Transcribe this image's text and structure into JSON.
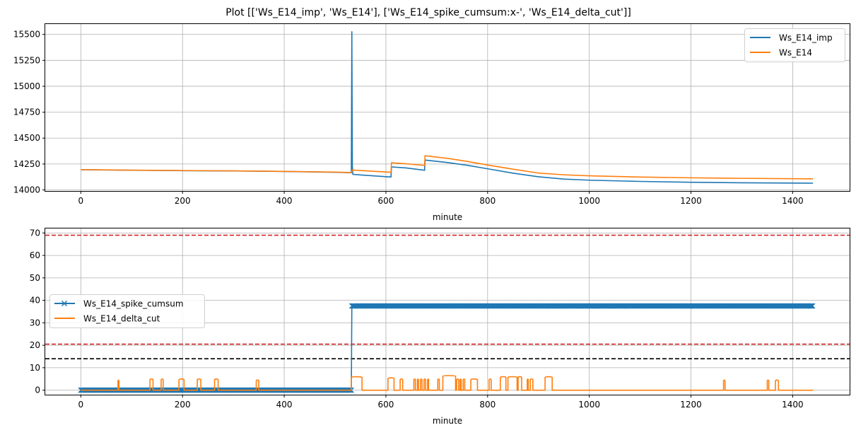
{
  "figure": {
    "title": "Plot [['Ws_E14_imp', 'Ws_E14'], ['Ws_E14_spike_cumsum:x-', 'Ws_E14_delta_cut']]"
  },
  "colors": {
    "blue": "#1f77b4",
    "orange": "#ff7f0e",
    "red_dashed": "#d62728",
    "black_dashed": "#000000",
    "grid": "#b0b0b0"
  },
  "chart_data": [
    {
      "type": "line",
      "xlabel": "minute",
      "ylabel": "",
      "xlim": [
        -70,
        1512
      ],
      "ylim": [
        13990,
        15600
      ],
      "xticks": [
        0,
        200,
        400,
        600,
        800,
        1000,
        1200,
        1400
      ],
      "yticks": [
        14000,
        14250,
        14500,
        14750,
        15000,
        15250,
        15500
      ],
      "grid": true,
      "legend_position": "top-right",
      "series": [
        {
          "name": "Ws_E14_imp",
          "color": "blue",
          "style": "solid",
          "points": [
            [
              0,
              14195
            ],
            [
              100,
              14190
            ],
            [
              200,
              14186
            ],
            [
              300,
              14183
            ],
            [
              400,
              14178
            ],
            [
              500,
              14170
            ],
            [
              532,
              14166
            ],
            [
              533,
              15530
            ],
            [
              534,
              14230
            ],
            [
              535,
              14150
            ],
            [
              600,
              14128
            ],
            [
              610,
              14125
            ],
            [
              611,
              14222
            ],
            [
              640,
              14212
            ],
            [
              676,
              14190
            ],
            [
              677,
              14288
            ],
            [
              720,
              14265
            ],
            [
              760,
              14238
            ],
            [
              800,
              14204
            ],
            [
              850,
              14162
            ],
            [
              900,
              14127
            ],
            [
              950,
              14105
            ],
            [
              1000,
              14094
            ],
            [
              1100,
              14082
            ],
            [
              1200,
              14074
            ],
            [
              1300,
              14069
            ],
            [
              1440,
              14065
            ]
          ]
        },
        {
          "name": "Ws_E14",
          "color": "orange",
          "style": "solid",
          "points": [
            [
              0,
              14196
            ],
            [
              100,
              14191
            ],
            [
              200,
              14187
            ],
            [
              300,
              14184
            ],
            [
              400,
              14179
            ],
            [
              500,
              14172
            ],
            [
              532,
              14168
            ],
            [
              534,
              14192
            ],
            [
              610,
              14170
            ],
            [
              611,
              14262
            ],
            [
              640,
              14252
            ],
            [
              676,
              14236
            ],
            [
              677,
              14330
            ],
            [
              720,
              14305
            ],
            [
              760,
              14275
            ],
            [
              800,
              14240
            ],
            [
              850,
              14200
            ],
            [
              900,
              14163
            ],
            [
              950,
              14146
            ],
            [
              1000,
              14136
            ],
            [
              1100,
              14124
            ],
            [
              1200,
              14117
            ],
            [
              1300,
              14112
            ],
            [
              1440,
              14107
            ]
          ]
        }
      ]
    },
    {
      "type": "line",
      "xlabel": "minute",
      "ylabel": "",
      "xlim": [
        -70,
        1512
      ],
      "ylim": [
        -2,
        72
      ],
      "xticks": [
        0,
        200,
        400,
        600,
        800,
        1000,
        1200,
        1400
      ],
      "yticks": [
        0,
        10,
        20,
        30,
        40,
        50,
        60,
        70
      ],
      "grid": true,
      "legend_position": "center-left",
      "reference_lines": [
        {
          "y": 69,
          "color": "red_dashed",
          "style": "dashed"
        },
        {
          "y": 20.5,
          "color": "red_dashed",
          "style": "dashed"
        },
        {
          "y": 14,
          "color": "black_dashed",
          "style": "dashed"
        }
      ],
      "series": [
        {
          "name": "Ws_E14_spike_cumsum",
          "color": "blue",
          "style": "solid-x-markers",
          "segments": [
            [
              0,
              532,
              0
            ],
            [
              533,
              1440,
              37.5
            ]
          ]
        },
        {
          "name": "Ws_E14_delta_cut",
          "color": "orange",
          "style": "solid",
          "pulses": [
            [
              73,
              75,
              4.5
            ],
            [
              136,
              142,
              5
            ],
            [
              158,
              162,
              5
            ],
            [
              193,
              203,
              5
            ],
            [
              229,
              236,
              5
            ],
            [
              263,
              270,
              5
            ],
            [
              345,
              350,
              4.5
            ],
            [
              532,
              553,
              6
            ],
            [
              604,
              616,
              5.5
            ],
            [
              628,
              633,
              5
            ],
            [
              655,
              658,
              5
            ],
            [
              662,
              664,
              5
            ],
            [
              668,
              671,
              5
            ],
            [
              675,
              678,
              5
            ],
            [
              682,
              684,
              5
            ],
            [
              702,
              705,
              5
            ],
            [
              712,
              737,
              6.5
            ],
            [
              739,
              743,
              5
            ],
            [
              746,
              748,
              5
            ],
            [
              752,
              755,
              5
            ],
            [
              767,
              780,
              5
            ],
            [
              803,
              807,
              5
            ],
            [
              825,
              836,
              6
            ],
            [
              840,
              858,
              6
            ],
            [
              860,
              867,
              6
            ],
            [
              878,
              880,
              5
            ],
            [
              884,
              889,
              5
            ],
            [
              913,
              927,
              6
            ],
            [
              1264,
              1267,
              4.5
            ],
            [
              1350,
              1353,
              4.5
            ],
            [
              1366,
              1372,
              4.5
            ]
          ],
          "end_x": 1440
        }
      ]
    }
  ]
}
